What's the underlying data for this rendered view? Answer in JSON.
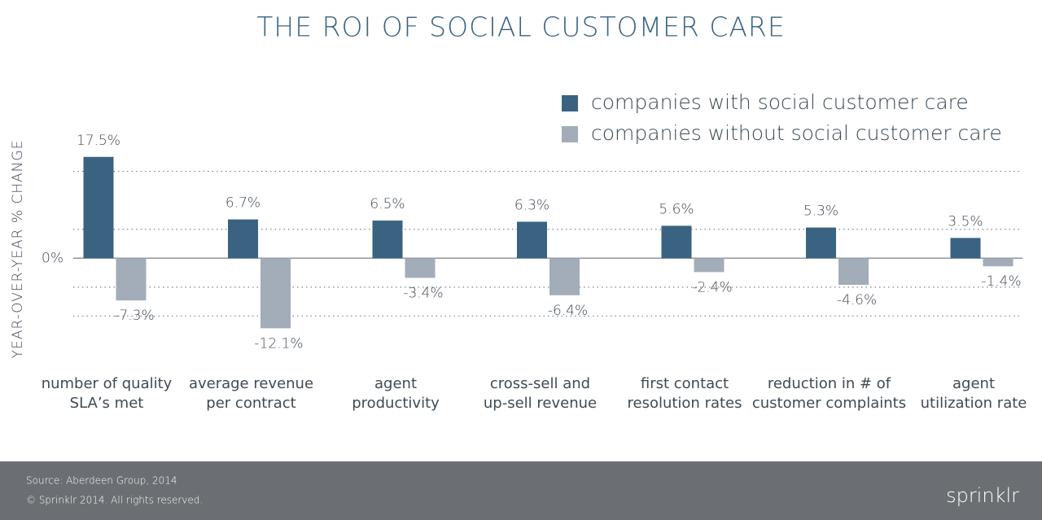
{
  "chart_data": {
    "type": "bar",
    "title": "THE ROI OF SOCIAL CUSTOMER CARE",
    "y_label": "YEAR-OVER-YEAR % CHANGE",
    "categories": [
      "number of quality\nSLA’s met",
      "average revenue\nper contract",
      "agent\nproductivity",
      "cross-sell and\nup-sell revenue",
      "first contact\nresolution rates",
      "reduction in # of\ncustomer complaints",
      "agent\nutilization rate"
    ],
    "series": [
      {
        "name": "companies with social customer care",
        "color": "#3a6381",
        "values": [
          17.5,
          6.7,
          6.5,
          6.3,
          5.6,
          5.3,
          3.5
        ],
        "value_labels": [
          "17.5%",
          "6.7%",
          "6.5%",
          "6.3%",
          "5.6%",
          "5.3%",
          "3.5%"
        ]
      },
      {
        "name": "companies without social customer care",
        "color": "#a3adb9",
        "values": [
          -7.3,
          -12.1,
          -3.4,
          -6.4,
          -2.4,
          -4.6,
          -1.4
        ],
        "value_labels": [
          "-7.3%",
          "-12.1%",
          "-3.4%",
          "-6.4%",
          "-2.4%",
          "-4.6%",
          "-1.4%"
        ]
      }
    ],
    "ylim": [
      -15,
      20
    ],
    "yticks": [
      {
        "value": 0,
        "label": "0%"
      }
    ],
    "ygrid": [
      -10,
      -5,
      5,
      15
    ],
    "legend": "top-right"
  },
  "footer": {
    "source": "Source: Aberdeen Group, 2014",
    "copyright": "© Sprinklr 2014. All rights reserved.",
    "logo": "sprinklr"
  }
}
